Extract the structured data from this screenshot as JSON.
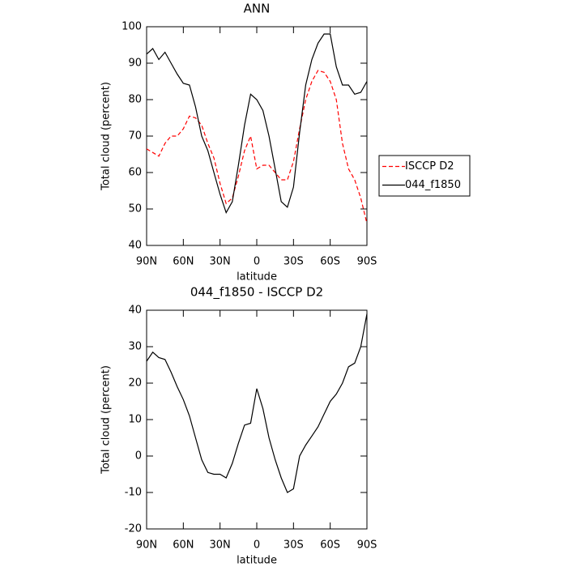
{
  "chart_data": [
    {
      "type": "line",
      "title": "ANN",
      "x_label": "latitude",
      "y_label": "Total cloud (percent)",
      "x": [
        90,
        85,
        80,
        75,
        70,
        65,
        60,
        55,
        50,
        45,
        40,
        35,
        30,
        25,
        20,
        15,
        10,
        5,
        0,
        -5,
        -10,
        -15,
        -20,
        -25,
        -30,
        -35,
        -40,
        -45,
        -50,
        -55,
        -60,
        -65,
        -70,
        -75,
        -80,
        -85,
        -90
      ],
      "series": [
        {
          "name": "ISCCP D2",
          "color": "#ff0000",
          "dash": true,
          "values": [
            66.5,
            65.5,
            64.5,
            68,
            70,
            70,
            72,
            75.5,
            75,
            73,
            68,
            64,
            57,
            51.5,
            53,
            59,
            66,
            70,
            61,
            62,
            62,
            60,
            58,
            58,
            63,
            72,
            80,
            85,
            88,
            87.5,
            85,
            80,
            68,
            61,
            58,
            53,
            46
          ]
        },
        {
          "name": "044_f1850",
          "color": "#000000",
          "dash": false,
          "values": [
            92.5,
            94,
            91,
            93,
            90,
            87,
            84.5,
            84,
            78,
            70,
            66,
            60,
            54,
            49,
            52,
            62,
            73,
            81.5,
            80,
            77,
            70,
            61,
            52,
            50.5,
            56,
            71,
            84,
            91,
            95.5,
            98,
            98,
            89,
            84,
            84,
            81.5,
            82,
            85
          ]
        }
      ],
      "xlim": [
        90,
        -90
      ],
      "xticks": [
        {
          "value": 90,
          "label": "90N"
        },
        {
          "value": 60,
          "label": "60N"
        },
        {
          "value": 30,
          "label": "30N"
        },
        0,
        {
          "value": -30,
          "label": "30S"
        },
        {
          "value": -60,
          "label": "60S"
        },
        {
          "value": -90,
          "label": "90S"
        }
      ],
      "ylim": [
        40,
        100
      ],
      "yticks": [
        40,
        50,
        60,
        70,
        80,
        90,
        100
      ],
      "legend": "right"
    },
    {
      "type": "line",
      "title": "044_f1850 - ISCCP D2",
      "x_label": "latitude",
      "y_label": "Total cloud (percent)",
      "x": [
        90,
        85,
        80,
        75,
        70,
        65,
        60,
        55,
        50,
        45,
        40,
        35,
        30,
        25,
        20,
        15,
        10,
        5,
        0,
        -5,
        -10,
        -15,
        -20,
        -25,
        -30,
        -35,
        -40,
        -45,
        -50,
        -55,
        -60,
        -65,
        -70,
        -75,
        -80,
        -85,
        -90
      ],
      "series": [
        {
          "color": "#000000",
          "dash": false,
          "values": [
            26,
            28.5,
            27,
            26.5,
            23,
            19,
            15.5,
            11,
            5,
            -1,
            -4.5,
            -5,
            -5,
            -6,
            -2,
            3.5,
            8.5,
            9,
            18.5,
            13,
            5,
            -1,
            -6,
            -10,
            -9,
            0,
            3,
            5.5,
            8,
            11.5,
            15,
            17,
            20,
            24.5,
            25.5,
            30,
            39
          ]
        }
      ],
      "xlim": [
        90,
        -90
      ],
      "xticks": [
        {
          "value": 90,
          "label": "90N"
        },
        {
          "value": 60,
          "label": "60N"
        },
        {
          "value": 30,
          "label": "30N"
        },
        0,
        {
          "value": -30,
          "label": "30S"
        },
        {
          "value": -60,
          "label": "60S"
        },
        {
          "value": -90,
          "label": "90S"
        }
      ],
      "ylim": [
        -20,
        40
      ],
      "yticks": [
        -20,
        -10,
        0,
        10,
        20,
        30,
        40
      ]
    }
  ]
}
